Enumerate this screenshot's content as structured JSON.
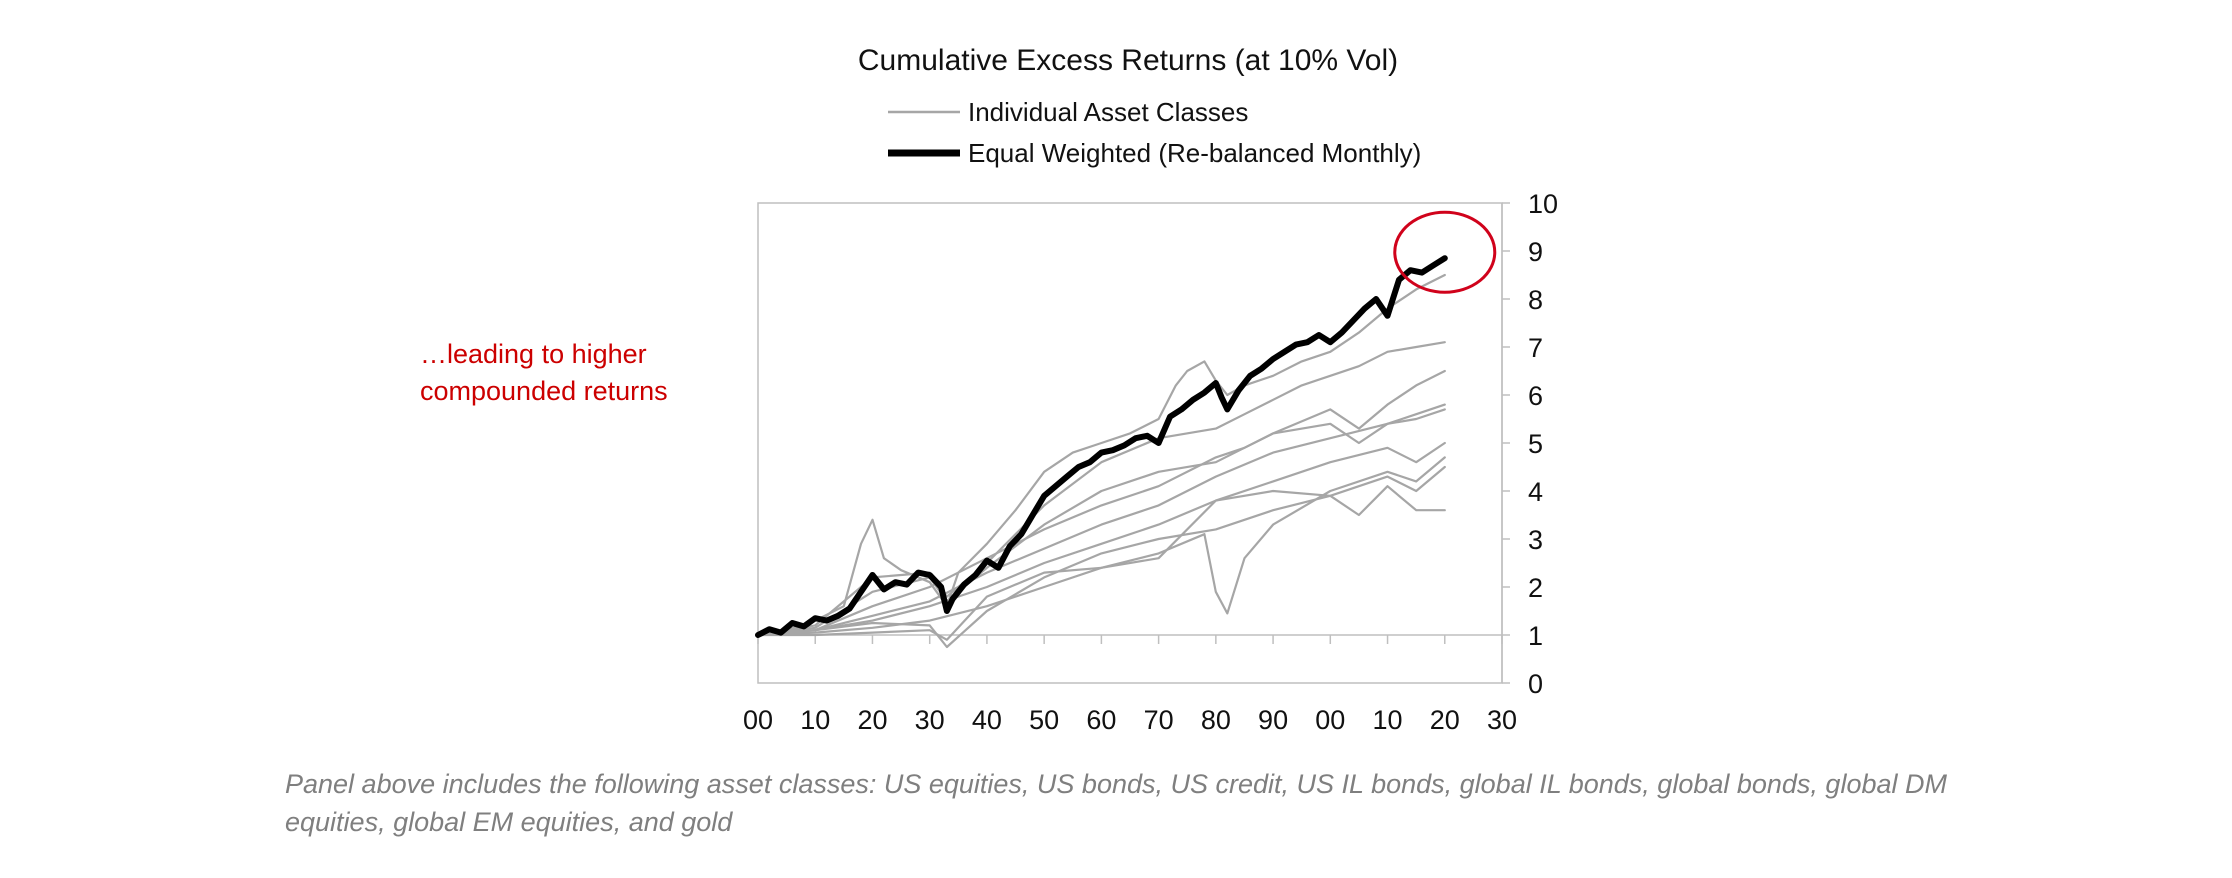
{
  "chart_data": {
    "type": "line",
    "title": "Cumulative Excess Returns (at 10% Vol)",
    "xlabel": "",
    "ylabel": "",
    "x_ticks": [
      "00",
      "10",
      "20",
      "30",
      "40",
      "50",
      "60",
      "70",
      "80",
      "90",
      "00",
      "10",
      "20",
      "30"
    ],
    "y_ticks": [
      "0",
      "1",
      "2",
      "3",
      "4",
      "5",
      "6",
      "7",
      "8",
      "9",
      "10"
    ],
    "xlim": [
      0,
      130
    ],
    "ylim": [
      0,
      10
    ],
    "legend": {
      "placement": "top-center",
      "entries": [
        {
          "label": "Individual Asset Classes",
          "color": "#a6a6a6",
          "style": "thin"
        },
        {
          "label": "Equal Weighted (Re-balanced Monthly)",
          "color": "#000000",
          "style": "thick"
        }
      ]
    },
    "series": [
      {
        "name": "Equal Weighted (Re-balanced Monthly)",
        "kind": "equal",
        "x": [
          0,
          2,
          4,
          6,
          8,
          10,
          12,
          14,
          16,
          18,
          20,
          22,
          24,
          26,
          28,
          30,
          32,
          33,
          34,
          36,
          38,
          40,
          42,
          44,
          46,
          48,
          50,
          52,
          54,
          56,
          58,
          60,
          62,
          64,
          66,
          68,
          70,
          72,
          74,
          76,
          78,
          80,
          81,
          82,
          84,
          86,
          88,
          90,
          92,
          94,
          96,
          98,
          100,
          102,
          104,
          106,
          108,
          110,
          112,
          114,
          116,
          118,
          120
        ],
        "values": [
          1.0,
          1.12,
          1.05,
          1.25,
          1.18,
          1.35,
          1.3,
          1.4,
          1.55,
          1.9,
          2.25,
          1.95,
          2.1,
          2.05,
          2.3,
          2.25,
          2.0,
          1.5,
          1.75,
          2.05,
          2.25,
          2.55,
          2.4,
          2.85,
          3.1,
          3.5,
          3.9,
          4.1,
          4.3,
          4.5,
          4.6,
          4.8,
          4.85,
          4.95,
          5.1,
          5.15,
          5.0,
          5.55,
          5.7,
          5.9,
          6.05,
          6.25,
          5.95,
          5.7,
          6.1,
          6.4,
          6.55,
          6.75,
          6.9,
          7.05,
          7.1,
          7.25,
          7.1,
          7.3,
          7.55,
          7.8,
          8.0,
          7.65,
          8.4,
          8.6,
          8.55,
          8.7,
          8.85
        ]
      },
      {
        "name": "Individual asset class 1",
        "kind": "asset",
        "x": [
          0,
          5,
          10,
          15,
          18,
          20,
          22,
          25,
          30,
          33,
          35,
          40,
          45,
          50,
          55,
          60,
          65,
          70,
          73,
          75,
          78,
          80,
          82,
          85,
          90,
          95,
          100,
          105,
          110,
          115,
          120
        ],
        "values": [
          1.0,
          1.1,
          1.3,
          1.6,
          2.9,
          3.4,
          2.6,
          2.35,
          2.1,
          1.6,
          2.3,
          2.9,
          3.6,
          4.4,
          4.8,
          5.0,
          5.2,
          5.5,
          6.2,
          6.5,
          6.7,
          6.3,
          6.0,
          6.2,
          6.4,
          6.7,
          6.9,
          7.3,
          7.8,
          8.2,
          8.5
        ]
      },
      {
        "name": "Individual asset class 2",
        "kind": "asset",
        "x": [
          0,
          10,
          20,
          30,
          33,
          40,
          50,
          60,
          70,
          80,
          85,
          90,
          95,
          100,
          105,
          110,
          115,
          120
        ],
        "values": [
          1.0,
          1.2,
          2.2,
          2.3,
          1.8,
          2.5,
          3.7,
          4.6,
          5.1,
          5.3,
          5.6,
          5.9,
          6.2,
          6.4,
          6.6,
          6.9,
          7.0,
          7.1
        ]
      },
      {
        "name": "Individual asset class 3",
        "kind": "asset",
        "x": [
          0,
          10,
          20,
          30,
          33,
          40,
          50,
          60,
          70,
          80,
          90,
          100,
          105,
          110,
          115,
          120
        ],
        "values": [
          1.0,
          1.15,
          1.9,
          2.2,
          1.7,
          2.4,
          3.3,
          4.0,
          4.4,
          4.6,
          5.2,
          5.7,
          5.3,
          5.8,
          6.2,
          6.5
        ]
      },
      {
        "name": "Individual asset class 4",
        "kind": "asset",
        "x": [
          0,
          10,
          20,
          30,
          40,
          50,
          60,
          70,
          80,
          85,
          90,
          100,
          105,
          110,
          115,
          120
        ],
        "values": [
          1.0,
          1.1,
          1.6,
          2.0,
          2.6,
          3.2,
          3.7,
          4.1,
          4.7,
          4.9,
          5.2,
          5.4,
          5.0,
          5.4,
          5.6,
          5.8
        ]
      },
      {
        "name": "Individual asset class 5",
        "kind": "asset",
        "x": [
          0,
          10,
          20,
          30,
          40,
          50,
          60,
          70,
          75,
          80,
          90,
          100,
          110,
          115,
          120
        ],
        "values": [
          1.0,
          1.1,
          1.4,
          1.7,
          2.3,
          2.8,
          3.3,
          3.7,
          4.0,
          4.3,
          4.8,
          5.1,
          5.4,
          5.5,
          5.7
        ]
      },
      {
        "name": "Individual asset class 6",
        "kind": "asset",
        "x": [
          0,
          10,
          20,
          30,
          40,
          50,
          60,
          70,
          80,
          90,
          100,
          110,
          115,
          120
        ],
        "values": [
          1.0,
          1.1,
          1.3,
          1.6,
          2.0,
          2.5,
          2.9,
          3.3,
          3.8,
          4.2,
          4.6,
          4.9,
          4.6,
          5.0
        ]
      },
      {
        "name": "Individual asset class 7",
        "kind": "asset",
        "x": [
          0,
          10,
          20,
          30,
          40,
          50,
          60,
          70,
          78,
          80,
          82,
          85,
          90,
          100,
          110,
          115,
          120
        ],
        "values": [
          1.0,
          1.05,
          1.15,
          1.3,
          1.6,
          2.0,
          2.4,
          2.7,
          3.1,
          1.9,
          1.45,
          2.6,
          3.3,
          4.0,
          4.4,
          4.2,
          4.7
        ]
      },
      {
        "name": "Individual asset class 8",
        "kind": "asset",
        "x": [
          0,
          10,
          20,
          30,
          33,
          40,
          50,
          60,
          70,
          80,
          90,
          100,
          110,
          115,
          120
        ],
        "values": [
          1.0,
          1.1,
          1.25,
          1.2,
          0.75,
          1.5,
          2.2,
          2.7,
          3.0,
          3.2,
          3.6,
          3.9,
          4.3,
          4.0,
          4.5
        ]
      },
      {
        "name": "Individual asset class 9",
        "kind": "asset",
        "x": [
          0,
          10,
          20,
          30,
          33,
          40,
          50,
          60,
          70,
          80,
          90,
          100,
          105,
          110,
          115,
          120
        ],
        "values": [
          1.0,
          1.0,
          1.05,
          1.1,
          0.9,
          1.8,
          2.3,
          2.4,
          2.6,
          3.8,
          4.0,
          3.9,
          3.5,
          4.1,
          3.6,
          3.6
        ]
      }
    ],
    "highlight": {
      "type": "circle",
      "x": 120,
      "y": 8.85,
      "color": "#d0021b"
    },
    "annotation": "…leading to higher\ncompounded returns",
    "caption": "Panel above includes the following asset classes: US equities, US bonds, US credit, US IL bonds, global IL bonds, global bonds, global DM equities, global EM equities, and gold"
  },
  "annotation_lines": [
    "…leading to higher",
    "compounded returns"
  ],
  "caption_text": "Panel above includes the following asset classes: US equities, US bonds, US credit, US IL bonds, global IL bonds, global bonds, global DM equities, global EM equities, and gold",
  "colors": {
    "asset": "#a6a6a6",
    "equal": "#000000",
    "highlight": "#d0021b",
    "annotation": "#cc0000",
    "caption": "#7f7f7f",
    "frame": "#bfbfbf"
  }
}
